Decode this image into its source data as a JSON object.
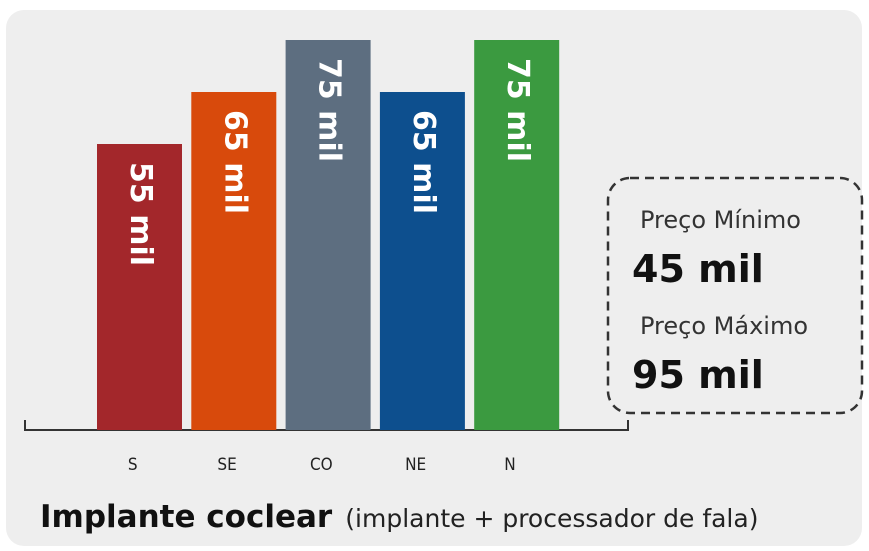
{
  "chart_data": {
    "type": "bar",
    "title": "Implante coclear",
    "subtitle": "(implante + processador de fala)",
    "categories": [
      "S",
      "SE",
      "CO",
      "NE",
      "N"
    ],
    "values": [
      55,
      65,
      75,
      65,
      75
    ],
    "value_labels": [
      "55 mil",
      "65 mil",
      "75 mil",
      "65 mil",
      "75 mil"
    ],
    "colors": [
      "#a3272b",
      "#d84a0c",
      "#5d6e80",
      "#0d4f8e",
      "#3b9a40"
    ],
    "annotations": [
      "Preço Mínimo",
      "45 mil",
      "Preço Máximo",
      "95 mil"
    ]
  }
}
